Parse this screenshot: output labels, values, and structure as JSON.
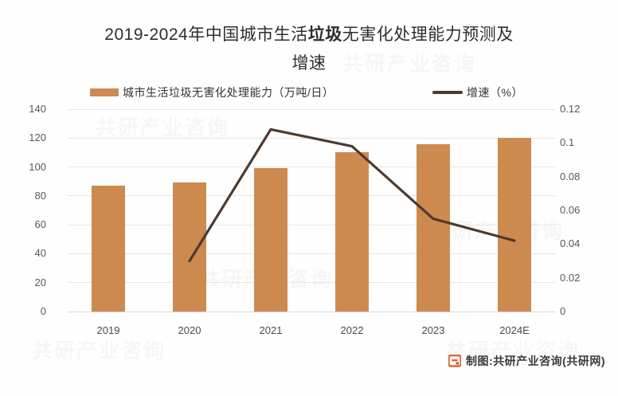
{
  "page": {
    "background": "#fefefe"
  },
  "title": {
    "line1_pre": "2019-2024年中国城市生活",
    "line1_bold": "垃圾",
    "line1_post": "无害化处理能力预测及",
    "line2": "增速"
  },
  "legend": {
    "capacity_label": "城市生活垃圾无害化处理能力（万吨/日）",
    "growth_label": "增速（%）"
  },
  "footer": {
    "credit": "制图:共研产业咨询(共研网)",
    "logo_icon": "gongyan-logo"
  },
  "watermark": {
    "text": "共研产业咨询"
  },
  "colors": {
    "bar": "#CD8A4F",
    "line": "#4C3B2F",
    "grid": "#E5E5E5",
    "axis_text": "#595959",
    "footer_logo": "#E0642F"
  },
  "chart_data": {
    "type": "bar+line",
    "title": "2019-2024年中国城市生活垃圾无害化处理能力预测及增速",
    "categories": [
      "2019",
      "2020",
      "2021",
      "2022",
      "2023",
      "2024E"
    ],
    "series": [
      {
        "name": "城市生活垃圾无害化处理能力（万吨/日）",
        "type": "bar",
        "axis": "left",
        "values": [
          87,
          89.5,
          99,
          110,
          115.5,
          120
        ]
      },
      {
        "name": "增速（%）",
        "type": "line",
        "axis": "right",
        "values": [
          null,
          0.03,
          0.108,
          0.098,
          0.055,
          0.042
        ]
      }
    ],
    "left_axis": {
      "min": 0,
      "max": 140,
      "step": 20,
      "ticks": [
        "0",
        "20",
        "40",
        "60",
        "80",
        "100",
        "120",
        "140"
      ]
    },
    "right_axis": {
      "min": 0,
      "max": 0.12,
      "step": 0.02,
      "ticks": [
        "0",
        "0.02",
        "0.04",
        "0.06",
        "0.08",
        "0.1",
        "0.12"
      ]
    },
    "grid": true,
    "legend_position": "top"
  }
}
